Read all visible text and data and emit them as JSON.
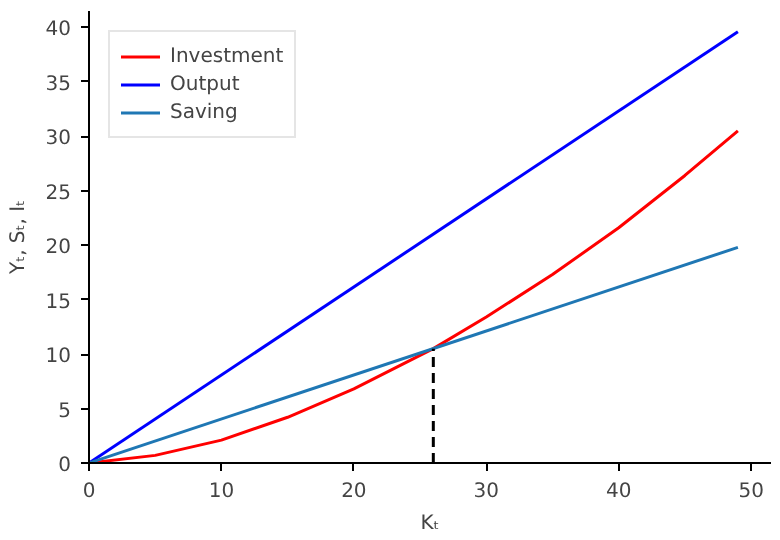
{
  "chart_data": {
    "type": "line",
    "xlabel": "Kₜ",
    "ylabel": "Yₜ, Sₜ, Iₜ",
    "x": [
      0,
      5,
      10,
      15,
      20,
      26,
      30,
      35,
      40,
      45,
      49
    ],
    "series": [
      {
        "name": "Investment",
        "color": "#ff0000",
        "values": [
          0,
          0.7,
          2.1,
          4.2,
          6.8,
          10.5,
          13.4,
          17.3,
          21.6,
          26.4,
          30.5
        ]
      },
      {
        "name": "Output",
        "color": "#0000ff",
        "x": [
          0,
          49
        ],
        "values": [
          0,
          39.6
        ]
      },
      {
        "name": "Saving",
        "color": "#1f77b4",
        "x": [
          0,
          49
        ],
        "values": [
          0,
          19.8
        ]
      },
      {
        "color": "#000000",
        "x": [
          26,
          26
        ],
        "values": [
          0,
          10.5
        ],
        "line_style": "dashed"
      }
    ],
    "xlim": [
      0,
      51.5
    ],
    "ylim": [
      0,
      41.5
    ],
    "xticks": [
      0,
      10,
      20,
      30,
      40,
      50
    ],
    "yticks": [
      0,
      5,
      10,
      15,
      20,
      25,
      30,
      35,
      40
    ],
    "legend": "top left",
    "grid": false,
    "marker": "none",
    "line_style": "solid"
  }
}
